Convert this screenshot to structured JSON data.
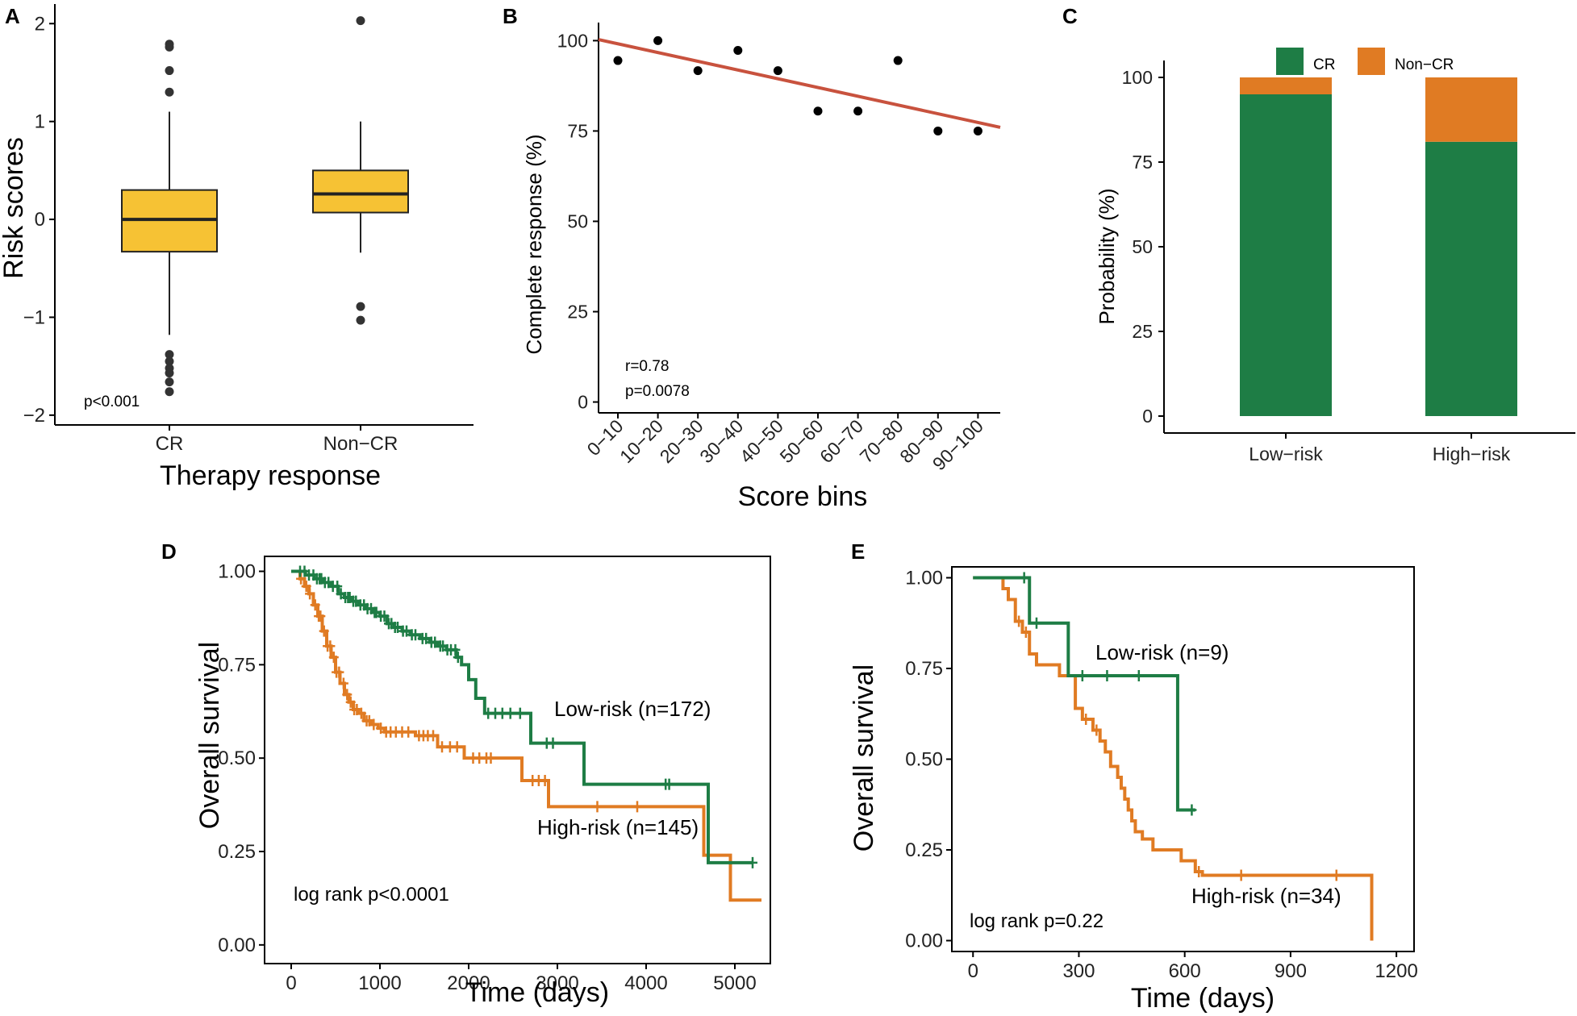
{
  "panel_labels": [
    "A",
    "B",
    "C",
    "D",
    "E"
  ],
  "colors": {
    "box_fill": "#F6C234",
    "trend_line": "#C8523E",
    "cr": "#1E7D45",
    "non_cr": "#E07B23",
    "low_risk": "#1E7D45",
    "high_risk": "#E07B23",
    "axis": "#000000"
  },
  "chart_data": [
    {
      "panel": "A",
      "type": "box",
      "xlabel": "Therapy response",
      "ylabel": "Risk scores",
      "ylim": [
        -2.1,
        2.2
      ],
      "yticks": [
        -2,
        -1,
        0,
        1,
        2
      ],
      "ytick_labels": [
        "−2",
        "−1",
        "0",
        "1",
        "2"
      ],
      "categories": [
        "CR",
        "Non−CR"
      ],
      "boxes": [
        {
          "q1": -0.33,
          "median": 0.0,
          "q3": 0.3,
          "whisker_low": -1.18,
          "whisker_high": 1.1,
          "outliers": [
            1.79,
            1.76,
            1.52,
            1.3,
            -1.38,
            -1.45,
            -1.52,
            -1.57,
            -1.66,
            -1.76
          ]
        },
        {
          "q1": 0.07,
          "median": 0.26,
          "q3": 0.5,
          "whisker_low": -0.34,
          "whisker_high": 1.0,
          "outliers": [
            2.03,
            -0.89,
            -1.03
          ]
        }
      ],
      "annotation": "p<0.001"
    },
    {
      "panel": "B",
      "type": "scatter",
      "xlabel": "Score bins",
      "ylabel": "Complete response (%)",
      "categories": [
        "0−10",
        "10−20",
        "20−30",
        "30−40",
        "40−50",
        "50−60",
        "60−70",
        "70−80",
        "80−90",
        "90−100"
      ],
      "values": [
        94.5,
        100,
        91.7,
        97.3,
        91.7,
        80.5,
        80.5,
        94.5,
        75,
        75
      ],
      "ylim": [
        -3,
        105
      ],
      "yticks": [
        0,
        25,
        50,
        75,
        100
      ],
      "trend": {
        "start": 100.3,
        "end": 76.0
      },
      "annotations": [
        "r=0.78",
        "p=0.0078"
      ]
    },
    {
      "panel": "C",
      "type": "stacked-bar",
      "xlabel": "",
      "ylabel": "Probability (%)",
      "categories": [
        "Low−risk",
        "High−risk"
      ],
      "series": [
        {
          "name": "CR",
          "values": [
            95,
            81
          ]
        },
        {
          "name": "Non−CR",
          "values": [
            5,
            19
          ]
        }
      ],
      "ylim": [
        -5,
        105
      ],
      "yticks": [
        0,
        25,
        50,
        75,
        100
      ],
      "legend": "top"
    },
    {
      "panel": "D",
      "type": "kaplan-meier",
      "xlabel": "Time (days)",
      "ylabel": "Overall survival",
      "xlim": [
        -300,
        5400
      ],
      "ylim": [
        -0.05,
        1.04
      ],
      "xticks": [
        0,
        1000,
        2000,
        3000,
        4000,
        5000
      ],
      "yticks": [
        0.0,
        0.25,
        0.5,
        0.75,
        1.0
      ],
      "ytick_labels": [
        "0.00",
        "0.25",
        "0.50",
        "0.75",
        "1.00"
      ],
      "series": [
        {
          "name": "Low-risk",
          "label": "Low-risk (n=172)",
          "steps": [
            [
              0,
              1.0
            ],
            [
              160,
              0.99
            ],
            [
              260,
              0.98
            ],
            [
              360,
              0.97
            ],
            [
              450,
              0.96
            ],
            [
              530,
              0.94
            ],
            [
              600,
              0.93
            ],
            [
              680,
              0.92
            ],
            [
              760,
              0.91
            ],
            [
              840,
              0.9
            ],
            [
              920,
              0.89
            ],
            [
              1000,
              0.88
            ],
            [
              1080,
              0.86
            ],
            [
              1160,
              0.85
            ],
            [
              1250,
              0.84
            ],
            [
              1340,
              0.83
            ],
            [
              1450,
              0.82
            ],
            [
              1560,
              0.81
            ],
            [
              1650,
              0.8
            ],
            [
              1750,
              0.79
            ],
            [
              1860,
              0.77
            ],
            [
              1920,
              0.75
            ],
            [
              2000,
              0.71
            ],
            [
              2080,
              0.66
            ],
            [
              2180,
              0.62
            ],
            [
              2700,
              0.54
            ],
            [
              3300,
              0.43
            ],
            [
              4700,
              0.22
            ],
            [
              5200,
              0.22
            ]
          ],
          "censor_times": [
            100,
            150,
            200,
            250,
            290,
            320,
            340,
            380,
            420,
            470,
            520,
            560,
            610,
            640,
            660,
            700,
            730,
            780,
            820,
            860,
            900,
            940,
            960,
            1010,
            1050,
            1100,
            1130,
            1170,
            1200,
            1260,
            1300,
            1360,
            1400,
            1480,
            1520,
            1580,
            1620,
            1680,
            1710,
            1760,
            1800,
            1850,
            1880,
            2220,
            2300,
            2380,
            2470,
            2580,
            2880,
            2950,
            4220,
            4260,
            5200
          ]
        },
        {
          "name": "High-risk",
          "label": "High-risk (n=145)",
          "steps": [
            [
              0,
              1.0
            ],
            [
              100,
              0.98
            ],
            [
              150,
              0.96
            ],
            [
              200,
              0.94
            ],
            [
              250,
              0.91
            ],
            [
              300,
              0.88
            ],
            [
              350,
              0.84
            ],
            [
              400,
              0.8
            ],
            [
              450,
              0.77
            ],
            [
              500,
              0.73
            ],
            [
              550,
              0.7
            ],
            [
              600,
              0.67
            ],
            [
              650,
              0.65
            ],
            [
              700,
              0.63
            ],
            [
              760,
              0.62
            ],
            [
              820,
              0.6
            ],
            [
              900,
              0.59
            ],
            [
              980,
              0.58
            ],
            [
              1050,
              0.57
            ],
            [
              1400,
              0.56
            ],
            [
              1650,
              0.53
            ],
            [
              1950,
              0.5
            ],
            [
              2600,
              0.44
            ],
            [
              2900,
              0.37
            ],
            [
              4650,
              0.24
            ],
            [
              4950,
              0.12
            ],
            [
              5300,
              0.12
            ]
          ],
          "censor_times": [
            110,
            170,
            210,
            270,
            310,
            330,
            370,
            410,
            440,
            480,
            510,
            540,
            590,
            630,
            670,
            710,
            740,
            790,
            850,
            880,
            930,
            1010,
            1070,
            1120,
            1180,
            1250,
            1320,
            1440,
            1490,
            1540,
            1600,
            1700,
            1790,
            1870,
            2050,
            2120,
            2200,
            2250,
            2720,
            2790,
            2860,
            3450,
            3900
          ]
        }
      ],
      "group_labels": [
        "Low-risk (n=172)",
        "High-risk (n=145)"
      ],
      "annotation": "log rank p<0.0001"
    },
    {
      "panel": "E",
      "type": "kaplan-meier",
      "xlabel": "Time (days)",
      "ylabel": "Overall survival",
      "xlim": [
        -60,
        1250
      ],
      "ylim": [
        -0.03,
        1.03
      ],
      "xticks": [
        0,
        300,
        600,
        900,
        1200
      ],
      "yticks": [
        0.0,
        0.25,
        0.5,
        0.75,
        1.0
      ],
      "ytick_labels": [
        "0.00",
        "0.25",
        "0.50",
        "0.75",
        "1.00"
      ],
      "series": [
        {
          "name": "Low-risk",
          "label": "Low-risk (n=9)",
          "steps": [
            [
              0,
              1.0
            ],
            [
              160,
              0.875
            ],
            [
              270,
              0.73
            ],
            [
              580,
              0.36
            ],
            [
              630,
              0.36
            ]
          ],
          "censor_times": [
            145,
            180,
            310,
            380,
            470,
            620
          ]
        },
        {
          "name": "High-risk",
          "label": "High-risk (n=34)",
          "steps": [
            [
              0,
              1.0
            ],
            [
              85,
              0.97
            ],
            [
              100,
              0.94
            ],
            [
              120,
              0.88
            ],
            [
              140,
              0.85
            ],
            [
              160,
              0.79
            ],
            [
              180,
              0.76
            ],
            [
              245,
              0.73
            ],
            [
              290,
              0.64
            ],
            [
              310,
              0.61
            ],
            [
              340,
              0.58
            ],
            [
              360,
              0.55
            ],
            [
              375,
              0.52
            ],
            [
              390,
              0.48
            ],
            [
              410,
              0.45
            ],
            [
              420,
              0.42
            ],
            [
              430,
              0.39
            ],
            [
              440,
              0.36
            ],
            [
              450,
              0.33
            ],
            [
              460,
              0.3
            ],
            [
              480,
              0.28
            ],
            [
              510,
              0.25
            ],
            [
              590,
              0.22
            ],
            [
              630,
              0.19
            ],
            [
              650,
              0.18
            ],
            [
              1130,
              0.18
            ],
            [
              1130,
              0.0
            ]
          ],
          "censor_times": [
            130,
            150,
            320,
            350,
            640,
            760,
            1030
          ]
        }
      ],
      "group_labels": [
        "Low-risk (n=9)",
        "High-risk (n=34)"
      ],
      "annotation": "log rank p=0.22"
    }
  ]
}
